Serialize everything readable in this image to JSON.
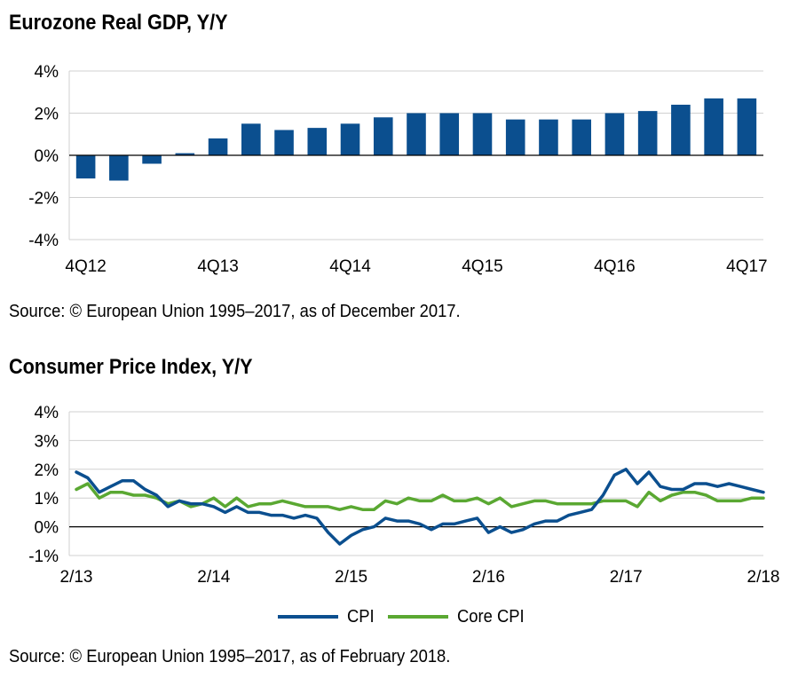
{
  "chart_data": [
    {
      "type": "bar",
      "title": "Eurozone Real GDP, Y/Y",
      "source": "Source: © European Union 1995–2017, as of December 2017.",
      "categories": [
        "4Q12",
        "1Q13",
        "2Q13",
        "3Q13",
        "4Q13",
        "1Q14",
        "2Q14",
        "3Q14",
        "4Q14",
        "1Q15",
        "2Q15",
        "3Q15",
        "4Q15",
        "1Q16",
        "2Q16",
        "3Q16",
        "4Q16",
        "1Q17",
        "2Q17",
        "3Q17",
        "4Q17"
      ],
      "values": [
        -1.1,
        -1.2,
        -0.4,
        0.1,
        0.8,
        1.5,
        1.2,
        1.3,
        1.5,
        1.8,
        2.0,
        2.0,
        2.0,
        1.7,
        1.7,
        1.7,
        2.0,
        2.1,
        2.4,
        2.7,
        2.7
      ],
      "x_tick_labels": [
        "4Q12",
        "4Q13",
        "4Q14",
        "4Q15",
        "4Q16",
        "4Q17"
      ],
      "y_ticks": [
        4,
        2,
        0,
        -2,
        -4
      ],
      "y_tick_labels": [
        "4%",
        "2%",
        "0%",
        "-2%",
        "-4%"
      ],
      "ylim": [
        -4,
        4
      ],
      "xlabel": "",
      "ylabel": "",
      "color": "#0b4f8f",
      "grid": true,
      "legend": "none"
    },
    {
      "type": "line",
      "title": "Consumer Price Index, Y/Y",
      "source": "Source: © European Union 1995–2017, as of February 2018.",
      "x_start": "2/13",
      "x_end": "2/18",
      "x_tick_labels": [
        "2/13",
        "2/14",
        "2/15",
        "2/16",
        "2/17",
        "2/18"
      ],
      "y_ticks": [
        4,
        3,
        2,
        1,
        0,
        -1
      ],
      "y_tick_labels": [
        "4%",
        "3%",
        "2%",
        "1%",
        "0%",
        "-1%"
      ],
      "ylim": [
        -1,
        4
      ],
      "xlabel": "",
      "ylabel": "",
      "grid": true,
      "legend": "bottom-center",
      "series": [
        {
          "name": "CPI",
          "color": "#0b4f8f",
          "values": [
            1.9,
            1.7,
            1.2,
            1.4,
            1.6,
            1.6,
            1.3,
            1.1,
            0.7,
            0.9,
            0.8,
            0.8,
            0.7,
            0.5,
            0.7,
            0.5,
            0.5,
            0.4,
            0.4,
            0.3,
            0.4,
            0.3,
            -0.2,
            -0.6,
            -0.3,
            -0.1,
            0.0,
            0.3,
            0.2,
            0.2,
            0.1,
            -0.1,
            0.1,
            0.1,
            0.2,
            0.3,
            -0.2,
            0.0,
            -0.2,
            -0.1,
            0.1,
            0.2,
            0.2,
            0.4,
            0.5,
            0.6,
            1.1,
            1.8,
            2.0,
            1.5,
            1.9,
            1.4,
            1.3,
            1.3,
            1.5,
            1.5,
            1.4,
            1.5,
            1.4,
            1.3,
            1.2
          ]
        },
        {
          "name": "Core CPI",
          "color": "#5aa832",
          "values": [
            1.3,
            1.5,
            1.0,
            1.2,
            1.2,
            1.1,
            1.1,
            1.0,
            0.8,
            0.9,
            0.7,
            0.8,
            1.0,
            0.7,
            1.0,
            0.7,
            0.8,
            0.8,
            0.9,
            0.8,
            0.7,
            0.7,
            0.7,
            0.6,
            0.7,
            0.6,
            0.6,
            0.9,
            0.8,
            1.0,
            0.9,
            0.9,
            1.1,
            0.9,
            0.9,
            1.0,
            0.8,
            1.0,
            0.7,
            0.8,
            0.9,
            0.9,
            0.8,
            0.8,
            0.8,
            0.8,
            0.9,
            0.9,
            0.9,
            0.7,
            1.2,
            0.9,
            1.1,
            1.2,
            1.2,
            1.1,
            0.9,
            0.9,
            0.9,
            1.0,
            1.0
          ]
        }
      ]
    }
  ]
}
